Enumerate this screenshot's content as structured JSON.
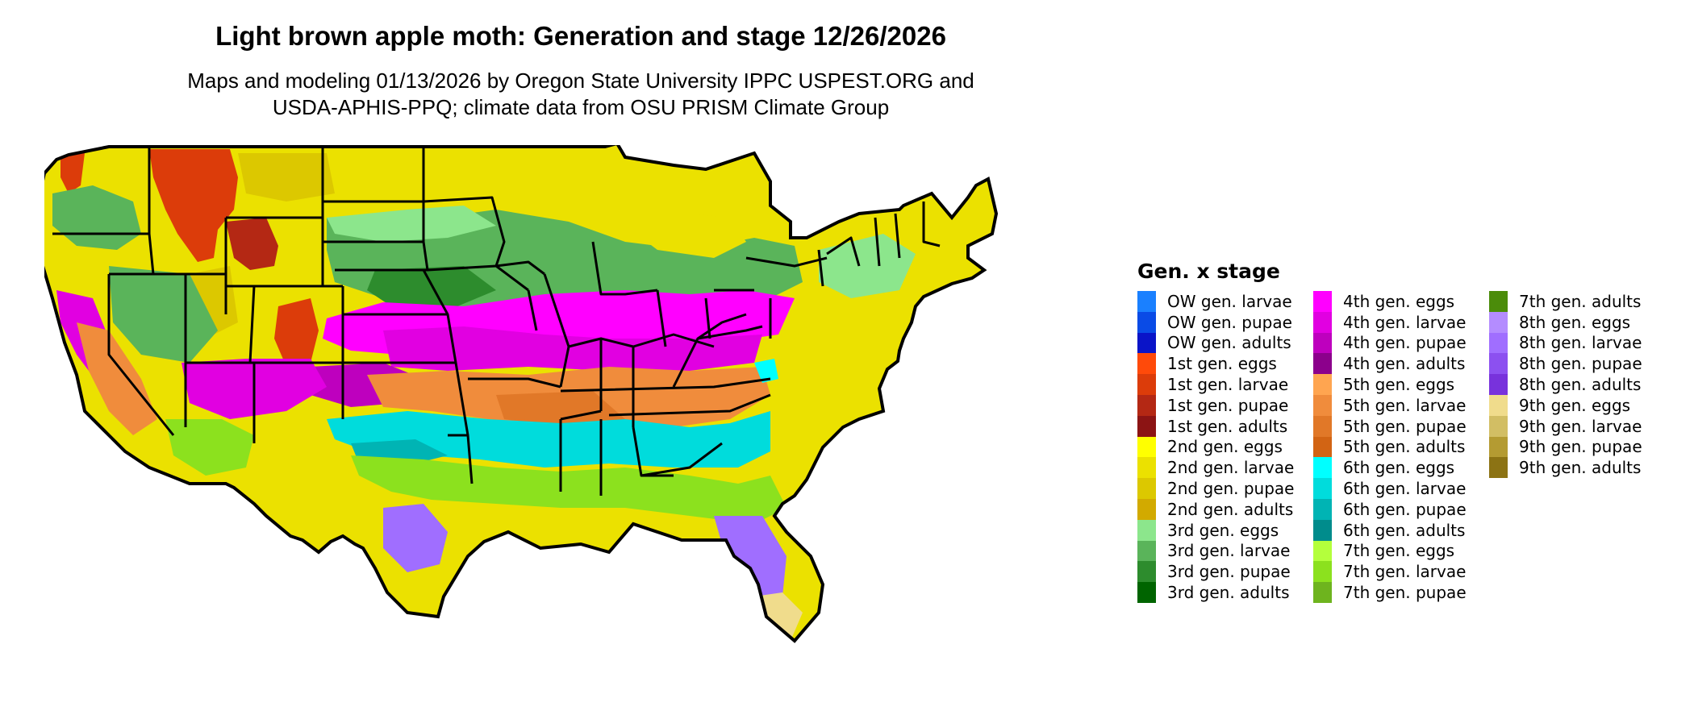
{
  "title": "Light brown apple moth: Generation and stage 12/26/2026",
  "subtitle_lines": [
    "Maps and modeling 01/13/2026 by Oregon State University IPPC USPEST.ORG and",
    "USDA-APHIS-PPQ; climate data from OSU PRISM Climate Group"
  ],
  "legend": {
    "title": "Gen. x stage",
    "columns": [
      [
        {
          "label": "OW gen. larvae",
          "color": "#1a80ff"
        },
        {
          "label": "OW gen. pupae",
          "color": "#0a4be6"
        },
        {
          "label": "OW gen. adults",
          "color": "#0a14c8"
        },
        {
          "label": "1st gen. eggs",
          "color": "#ff4a0a"
        },
        {
          "label": "1st gen. larvae",
          "color": "#dc3c0a"
        },
        {
          "label": "1st gen. pupae",
          "color": "#b42814"
        },
        {
          "label": "1st gen. adults",
          "color": "#8c1414"
        },
        {
          "label": "2nd gen. eggs",
          "color": "#ffff00"
        },
        {
          "label": "2nd gen. larvae",
          "color": "#ebe100"
        },
        {
          "label": "2nd gen. pupae",
          "color": "#dcc800"
        },
        {
          "label": "2nd gen. adults",
          "color": "#d2aa00"
        },
        {
          "label": "3rd gen. eggs",
          "color": "#8ce68c"
        },
        {
          "label": "3rd gen. larvae",
          "color": "#5ab45a"
        },
        {
          "label": "3rd gen. pupae",
          "color": "#2d8c2d"
        },
        {
          "label": "3rd gen. adults",
          "color": "#006400"
        }
      ],
      [
        {
          "label": "4th gen. eggs",
          "color": "#ff00ff"
        },
        {
          "label": "4th gen. larvae",
          "color": "#e100e1"
        },
        {
          "label": "4th gen. pupae",
          "color": "#be00be"
        },
        {
          "label": "4th gen. adults",
          "color": "#8c008c"
        },
        {
          "label": "5th gen. eggs",
          "color": "#ffa550"
        },
        {
          "label": "5th gen. larvae",
          "color": "#f08c3c"
        },
        {
          "label": "5th gen. pupae",
          "color": "#e17828"
        },
        {
          "label": "5th gen. adults",
          "color": "#d26414"
        },
        {
          "label": "6th gen. eggs",
          "color": "#00ffff"
        },
        {
          "label": "6th gen. larvae",
          "color": "#00dcdc"
        },
        {
          "label": "6th gen. pupae",
          "color": "#00b4b4"
        },
        {
          "label": "6th gen. adults",
          "color": "#008c8c"
        },
        {
          "label": "7th gen. eggs",
          "color": "#b4ff3c"
        },
        {
          "label": "7th gen. larvae",
          "color": "#8ce11e"
        },
        {
          "label": "7th gen. pupae",
          "color": "#6eb41e"
        }
      ],
      [
        {
          "label": "7th gen. adults",
          "color": "#4b8c0a"
        },
        {
          "label": "8th gen. eggs",
          "color": "#b48cff"
        },
        {
          "label": "8th gen. larvae",
          "color": "#a06eff"
        },
        {
          "label": "8th gen. pupae",
          "color": "#8c50f0"
        },
        {
          "label": "8th gen. adults",
          "color": "#7832dc"
        },
        {
          "label": "9th gen. eggs",
          "color": "#f0dc8c"
        },
        {
          "label": "9th gen. larvae",
          "color": "#d2be64"
        },
        {
          "label": "9th gen. pupae",
          "color": "#b49b32"
        },
        {
          "label": "9th gen. adults",
          "color": "#8c7314"
        }
      ]
    ]
  }
}
